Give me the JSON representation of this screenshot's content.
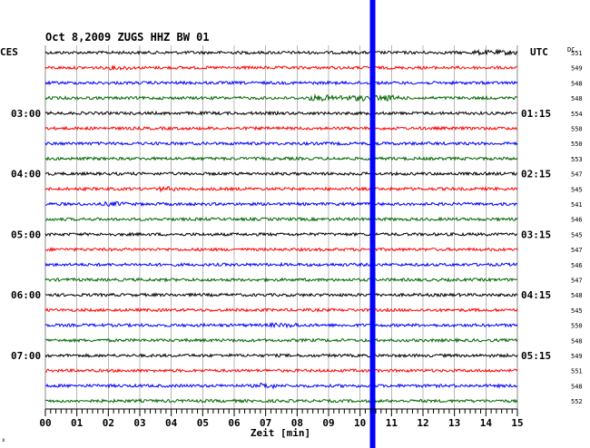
{
  "chart_data": {
    "type": "line",
    "title": "Oct 8,2009   ZUGS HHZ BW 01",
    "left_label": "CES",
    "right_label": "UTC",
    "dc_label": "DC",
    "xlabel": "Zeit [min]",
    "xlim": [
      0,
      15
    ],
    "x_ticks": [
      "00",
      "01",
      "02",
      "03",
      "04",
      "05",
      "06",
      "07",
      "08",
      "09",
      "10",
      "11",
      "12",
      "13",
      "14",
      "15"
    ],
    "left_time_labels": [
      {
        "row": 4,
        "label": "03:00"
      },
      {
        "row": 8,
        "label": "04:00"
      },
      {
        "row": 12,
        "label": "05:00"
      },
      {
        "row": 16,
        "label": "06:00"
      },
      {
        "row": 20,
        "label": "07:00"
      }
    ],
    "right_time_labels": [
      {
        "row": 4,
        "label": "01:15"
      },
      {
        "row": 8,
        "label": "02:15"
      },
      {
        "row": 12,
        "label": "03:15"
      },
      {
        "row": 16,
        "label": "04:15"
      },
      {
        "row": 20,
        "label": "05:15"
      }
    ],
    "trace_colors": [
      "#000000",
      "#ff0000",
      "#0000ff",
      "#006600"
    ],
    "dc_values": [
      "551",
      "549",
      "548",
      "548",
      "554",
      "550",
      "550",
      "553",
      "547",
      "545",
      "541",
      "546",
      "545",
      "547",
      "546",
      "547",
      "548",
      "545",
      "550",
      "548",
      "549",
      "551",
      "548",
      "552"
    ],
    "marker_line": {
      "x": 10.4,
      "color": "#0000ff"
    },
    "corner_mark": "x"
  }
}
